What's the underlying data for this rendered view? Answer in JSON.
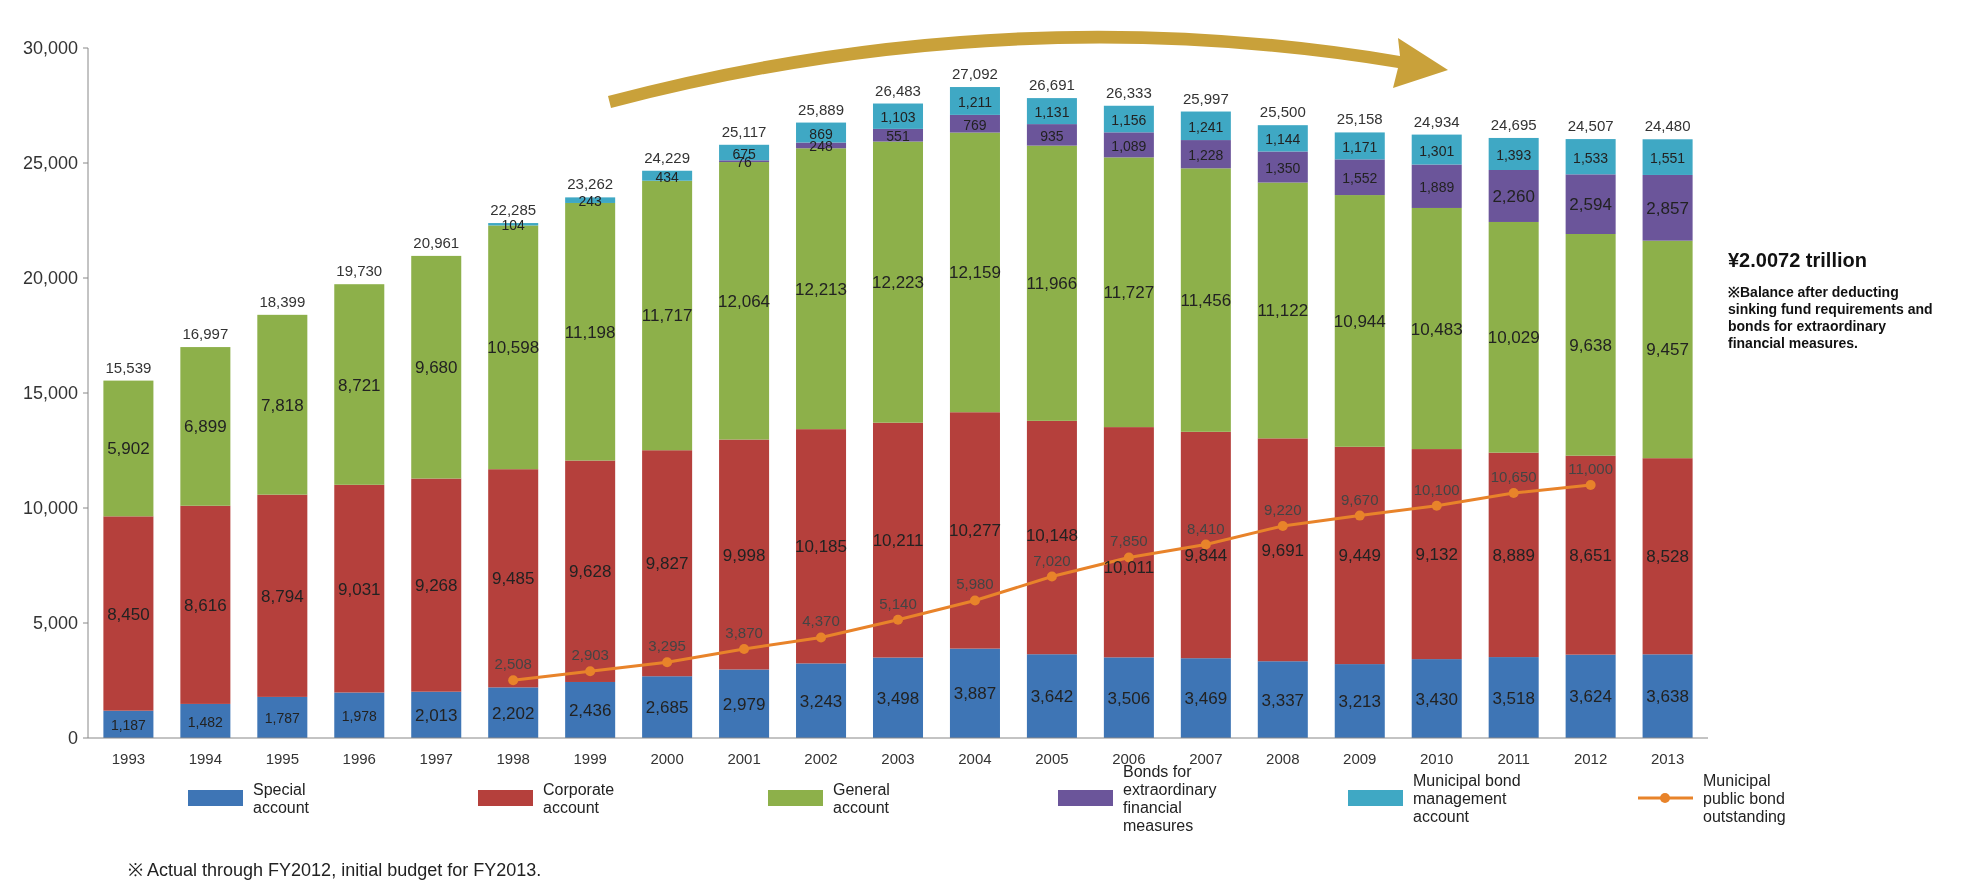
{
  "chart_data": {
    "type": "bar",
    "stacked": true,
    "categories": [
      "1993",
      "1994",
      "1995",
      "1996",
      "1997",
      "1998",
      "1999",
      "2000",
      "2001",
      "2002",
      "2003",
      "2004",
      "2005",
      "2006",
      "2007",
      "2008",
      "2009",
      "2010",
      "2011",
      "2012",
      "2013"
    ],
    "series": [
      {
        "name": "Special account",
        "color": "#3e75b5",
        "values": [
          1187,
          1482,
          1787,
          1978,
          2013,
          2202,
          2436,
          2685,
          2979,
          3243,
          3498,
          3887,
          3642,
          3506,
          3469,
          3337,
          3213,
          3430,
          3518,
          3624,
          3638
        ],
        "value_labels": [
          "1,187",
          "1,482",
          "1,787",
          "1,978",
          "2,013",
          "2,202",
          "2,436",
          "2,685",
          "2,979",
          "3,243",
          "3,498",
          "3,887",
          "3,642",
          "3,506",
          "3,469",
          "3,337",
          "3,213",
          "3,430",
          "3,518",
          "3,624",
          "3,638"
        ]
      },
      {
        "name": "Corporate account",
        "color": "#b5403c",
        "values": [
          8450,
          8616,
          8794,
          9031,
          9268,
          9485,
          9628,
          9827,
          9998,
          10185,
          10211,
          10277,
          10148,
          10011,
          9844,
          9691,
          9449,
          9132,
          8889,
          8651,
          8528
        ],
        "value_labels": [
          "8,450",
          "8,616",
          "8,794",
          "9,031",
          "9,268",
          "9,485",
          "9,628",
          "9,827",
          "9,998",
          "10,185",
          "10,211",
          "10,277",
          "10,148",
          "10,011",
          "9,844",
          "9,691",
          "9,449",
          "9,132",
          "8,889",
          "8,651",
          "8,528"
        ]
      },
      {
        "name": "General account",
        "color": "#8db04a",
        "values": [
          5902,
          6899,
          7818,
          8721,
          9680,
          10598,
          11198,
          11717,
          12064,
          12213,
          12223,
          12159,
          11966,
          11727,
          11456,
          11122,
          10944,
          10483,
          10029,
          9638,
          9457
        ],
        "value_labels": [
          "5,902",
          "6,899",
          "7,818",
          "8,721",
          "9,680",
          "10,598",
          "11,198",
          "11,717",
          "12,064",
          "12,213",
          "12,223",
          "12,159",
          "11,966",
          "11,727",
          "11,456",
          "11,122",
          "10,944",
          "10,483",
          "10,029",
          "9,638",
          "9,457"
        ]
      },
      {
        "name": "Bonds for extraordinary financial measures",
        "color": "#6b559a",
        "values": [
          null,
          null,
          null,
          null,
          null,
          null,
          null,
          null,
          76,
          248,
          551,
          769,
          935,
          1089,
          1228,
          1350,
          1552,
          1889,
          2260,
          2594,
          2857
        ],
        "value_labels": [
          null,
          null,
          null,
          null,
          null,
          null,
          null,
          null,
          "76",
          "248",
          "551",
          "769",
          "935",
          "1,089",
          "1,228",
          "1,350",
          "1,552",
          "1,889",
          "2,260",
          "2,594",
          "2,857"
        ]
      },
      {
        "name": "Municipal bond management account",
        "color": "#3fa8c4",
        "values": [
          null,
          null,
          null,
          null,
          null,
          104,
          243,
          434,
          675,
          869,
          1103,
          1211,
          1131,
          1156,
          1241,
          1144,
          1171,
          1301,
          1393,
          1533,
          1551
        ],
        "value_labels": [
          null,
          null,
          null,
          null,
          null,
          "104",
          "243",
          "434",
          "675",
          "869",
          "1,103",
          "1,211",
          "1,131",
          "1,156",
          "1,241",
          "1,144",
          "1,171",
          "1,301",
          "1,393",
          "1,533",
          "1,551"
        ]
      },
      {
        "name": "Municipal public bond outstanding",
        "type": "line",
        "color": "#e8832a",
        "marker": "circle",
        "values": [
          null,
          null,
          null,
          null,
          null,
          2508,
          2903,
          3295,
          3870,
          4370,
          5140,
          5980,
          7020,
          7850,
          8410,
          9220,
          9670,
          10100,
          10650,
          11000,
          null
        ],
        "value_labels": [
          null,
          null,
          null,
          null,
          null,
          "2,508",
          "2,903",
          "3,295",
          "3,870",
          "4,370",
          "5,140",
          "5,980",
          "7,020",
          "7,850",
          "8,410",
          "9,220",
          "9,670",
          "10,100",
          "10,650",
          "11,000",
          null
        ]
      }
    ],
    "ylim": [
      0,
      30000
    ],
    "yticks": [
      {
        "value": 0,
        "label": "0"
      },
      {
        "value": 5000,
        "label": "5,000"
      },
      {
        "value": 10000,
        "label": "10,000"
      },
      {
        "value": 15000,
        "label": "15,000"
      },
      {
        "value": 20000,
        "label": "20,000"
      },
      {
        "value": 25000,
        "label": "25,000"
      },
      {
        "value": 30000,
        "label": "30,000"
      }
    ],
    "legend": "bottom",
    "annotations": [
      {
        "text": "15,539",
        "x": "1993",
        "y": 15539
      },
      {
        "text": "16,997",
        "x": "1994",
        "y": 16997
      },
      {
        "text": "18,399",
        "x": "1995",
        "y": 18399
      },
      {
        "text": "19,730",
        "x": "1996",
        "y": 19730
      },
      {
        "text": "20,961",
        "x": "1997",
        "y": 20961
      },
      {
        "text": "22,285",
        "x": "1998",
        "y": 22389
      },
      {
        "text": "23,262",
        "x": "1999",
        "y": 23505
      },
      {
        "text": "24,229",
        "x": "2000",
        "y": 24663
      },
      {
        "text": "25,117",
        "x": "2001",
        "y": 25792
      },
      {
        "text": "25,889",
        "x": "2002",
        "y": 26758
      },
      {
        "text": "26,483",
        "x": "2003",
        "y": 27586
      },
      {
        "text": "27,092",
        "x": "2004",
        "y": 28303
      },
      {
        "text": "26,691",
        "x": "2005",
        "y": 27822
      },
      {
        "text": "26,333",
        "x": "2006",
        "y": 27489
      },
      {
        "text": "25,997",
        "x": "2007",
        "y": 27238
      },
      {
        "text": "25,500",
        "x": "2008",
        "y": 26644
      },
      {
        "text": "25,158",
        "x": "2009",
        "y": 26329
      },
      {
        "text": "24,934",
        "x": "2010",
        "y": 26235
      },
      {
        "text": "24,695",
        "x": "2011",
        "y": 26089
      },
      {
        "text": "24,507",
        "x": "2012",
        "y": 26040
      },
      {
        "text": "24,480",
        "x": "2013",
        "y": 26031
      },
      "¥2.0072 trillion",
      "※Balance after deducting sinking fund requirements and bonds for extraordinary financial measures.",
      "※ Actual through FY2012, initial budget for FY2013."
    ]
  }
}
